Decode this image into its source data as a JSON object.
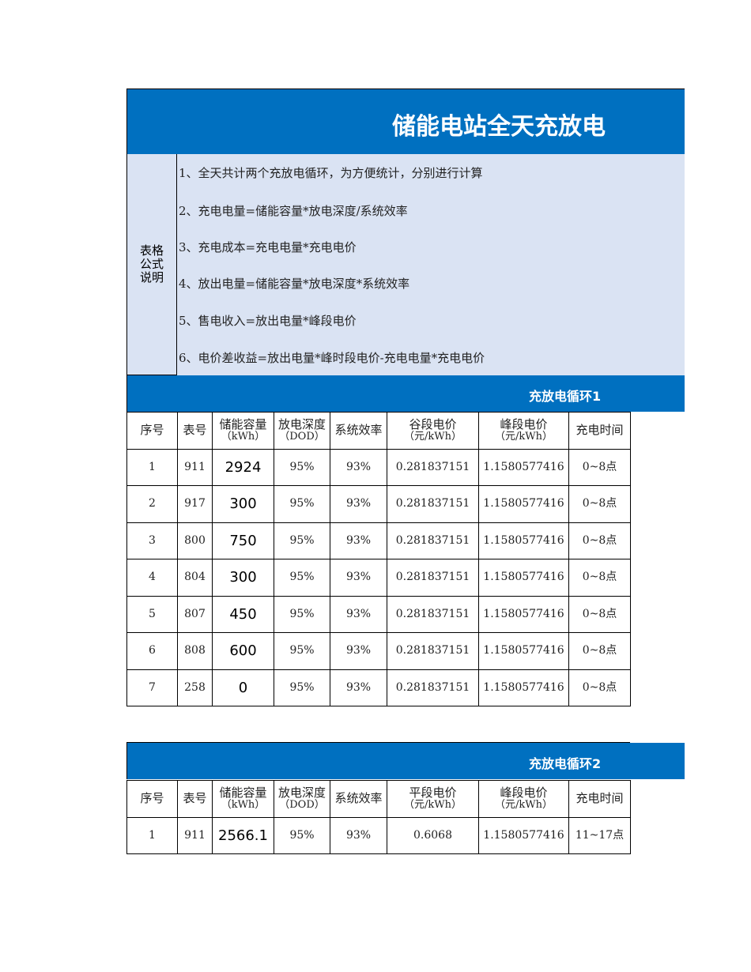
{
  "title": "储能电站全天充放电",
  "explanation": {
    "label": "表格公式说明",
    "lines": [
      "1、全天共计两个充放电循环，为方便统计，分别进行计算",
      "2、充电电量=储能容量*放电深度/系统效率",
      "3、充电成本=充电电量*充电电价",
      "4、放出电量=储能容量*放电深度*系统效率",
      "5、售电收入=放出电量*峰段电价",
      "6、电价差收益=放出电量*峰时段电价-充电电量*充电电价"
    ]
  },
  "colors": {
    "banner": "#0070c0",
    "explanation_bg": "#dae3f3"
  },
  "cycle1": {
    "title": "充放电循环1",
    "headers": [
      [
        "序号",
        ""
      ],
      [
        "表号",
        ""
      ],
      [
        "储能容量",
        "（kWh）"
      ],
      [
        "放电深度",
        "（DOD）"
      ],
      [
        "系统效率",
        ""
      ],
      [
        "谷段电价",
        "（元/kWh）"
      ],
      [
        "峰段电价",
        "（元/kWh）"
      ],
      [
        "充电时间",
        ""
      ]
    ],
    "rows": [
      [
        "1",
        "911",
        "2924",
        "95%",
        "93%",
        "0.281837151",
        "1.1580577416",
        "0~8点"
      ],
      [
        "2",
        "917",
        "300",
        "95%",
        "93%",
        "0.281837151",
        "1.1580577416",
        "0~8点"
      ],
      [
        "3",
        "800",
        "750",
        "95%",
        "93%",
        "0.281837151",
        "1.1580577416",
        "0~8点"
      ],
      [
        "4",
        "804",
        "300",
        "95%",
        "93%",
        "0.281837151",
        "1.1580577416",
        "0~8点"
      ],
      [
        "5",
        "807",
        "450",
        "95%",
        "93%",
        "0.281837151",
        "1.1580577416",
        "0~8点"
      ],
      [
        "6",
        "808",
        "600",
        "95%",
        "93%",
        "0.281837151",
        "1.1580577416",
        "0~8点"
      ],
      [
        "7",
        "258",
        "0",
        "95%",
        "93%",
        "0.281837151",
        "1.1580577416",
        "0~8点"
      ]
    ]
  },
  "cycle2": {
    "title": "充放电循环2",
    "headers": [
      [
        "序号",
        ""
      ],
      [
        "表号",
        ""
      ],
      [
        "储能容量",
        "（kWh）"
      ],
      [
        "放电深度",
        "（DOD）"
      ],
      [
        "系统效率",
        ""
      ],
      [
        "平段电价",
        "（元/kWh）"
      ],
      [
        "峰段电价",
        "（元/kWh）"
      ],
      [
        "充电时间",
        ""
      ]
    ],
    "rows": [
      [
        "1",
        "911",
        "2566.1",
        "95%",
        "93%",
        "0.6068",
        "1.1580577416",
        "11~17点"
      ]
    ]
  }
}
